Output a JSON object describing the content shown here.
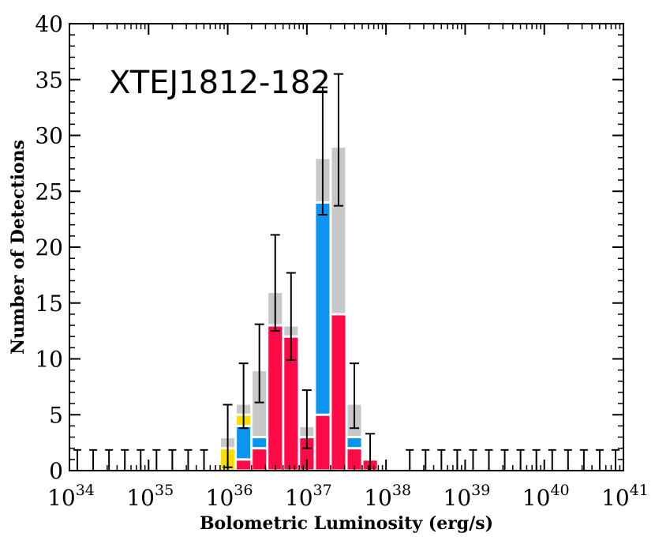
{
  "chart_data": {
    "type": "bar",
    "title": "XTEJ1812-182",
    "xlabel": "Bolometric Luminosity (erg/s)",
    "ylabel": "Number of Detections",
    "x_scale": "log10",
    "xlim": [
      34,
      41
    ],
    "ylim": [
      0,
      40
    ],
    "y_ticks": [
      0,
      5,
      10,
      15,
      20,
      25,
      30,
      35,
      40
    ],
    "x_ticks": [
      {
        "base": "10",
        "exp": "34"
      },
      {
        "base": "10",
        "exp": "35"
      },
      {
        "base": "10",
        "exp": "36"
      },
      {
        "base": "10",
        "exp": "37"
      },
      {
        "base": "10",
        "exp": "38"
      },
      {
        "base": "10",
        "exp": "39"
      },
      {
        "base": "10",
        "exp": "40"
      },
      {
        "base": "10",
        "exp": "41"
      }
    ],
    "bin_width_dex": 0.2,
    "bin_left_edges": [
      35.9,
      36.1,
      36.3,
      36.5,
      36.7,
      36.9,
      37.1,
      37.3,
      37.5,
      37.7
    ],
    "series": [
      {
        "color": "#ff0a46",
        "values": [
          0,
          1,
          2,
          13,
          12,
          3,
          5,
          14,
          2,
          1
        ]
      },
      {
        "color": "#0a96f0",
        "values": [
          0,
          3,
          1,
          0,
          0,
          0,
          19,
          0,
          1,
          0
        ]
      },
      {
        "color": "#fadc00",
        "values": [
          2,
          1,
          0,
          0,
          0,
          0,
          0,
          0,
          0,
          0
        ]
      },
      {
        "color": "#c8c8c8",
        "values": [
          1,
          1,
          6,
          3,
          1,
          1,
          4,
          15,
          3,
          0
        ]
      }
    ],
    "error_bars": [
      {
        "bin": 0,
        "center": 3,
        "low": 0.3,
        "high": 5.9
      },
      {
        "bin": 1,
        "center": 6,
        "low": 3.8,
        "high": 9.6
      },
      {
        "bin": 2,
        "center": 9,
        "low": 6.1,
        "high": 13.1
      },
      {
        "bin": 3,
        "center": 16,
        "low": 12.5,
        "high": 21.1
      },
      {
        "bin": 4,
        "center": 13,
        "low": 9.9,
        "high": 17.7
      },
      {
        "bin": 5,
        "center": 4,
        "low": 2.0,
        "high": 7.2
      },
      {
        "bin": 6,
        "center": 28,
        "low": 22.9,
        "high": 34.3
      },
      {
        "bin": 7,
        "center": 29,
        "low": 23.7,
        "high": 35.5
      },
      {
        "bin": 8,
        "center": 6,
        "low": 3.8,
        "high": 9.6
      },
      {
        "bin": 9,
        "center": 1,
        "low": 0,
        "high": 3.3
      }
    ],
    "upper_limits": [
      34.1,
      34.3,
      34.5,
      34.7,
      34.9,
      35.1,
      35.3,
      35.5,
      35.7,
      38.3,
      38.5,
      38.7,
      38.9,
      39.1,
      39.3,
      39.5,
      39.7,
      39.9,
      40.1,
      40.3,
      40.5,
      40.7,
      40.9
    ],
    "upper_limit_height": 1.85
  }
}
